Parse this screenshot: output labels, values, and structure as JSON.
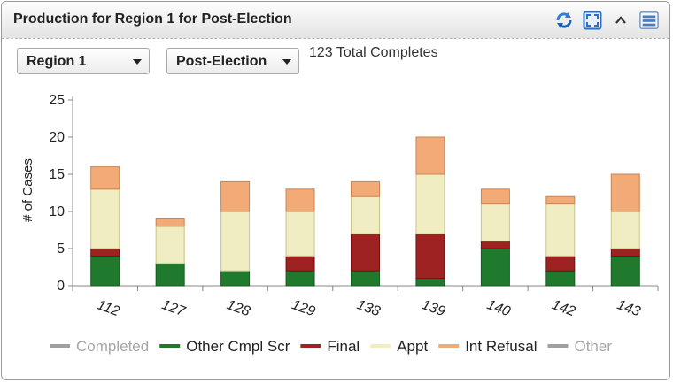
{
  "panel": {
    "title": "Production for Region 1 for Post-Election",
    "icons": [
      "refresh-icon",
      "maximize-icon",
      "collapse-icon",
      "menu-icon"
    ]
  },
  "filters": {
    "region": "Region 1",
    "phase": "Post-Election"
  },
  "total_completes": "123 Total Completes",
  "chart_data": {
    "type": "bar",
    "stacked": true,
    "ylabel": "# of Cases",
    "ylim": [
      0,
      25
    ],
    "yticks": [
      0,
      5,
      10,
      15,
      20,
      25
    ],
    "grid": false,
    "legend_position": "bottom",
    "categories": [
      "112",
      "127",
      "128",
      "129",
      "138",
      "139",
      "140",
      "142",
      "143"
    ],
    "series": [
      {
        "name": "Completed",
        "color": "#a0a0a0",
        "values": [
          0,
          0,
          0,
          0,
          0,
          0,
          0,
          0,
          0
        ],
        "legend_muted": true
      },
      {
        "name": "Other Cmpl Scr",
        "color": "#1f7a2e",
        "values": [
          4,
          3,
          2,
          2,
          2,
          1,
          5,
          2,
          4
        ]
      },
      {
        "name": "Final",
        "color": "#9e2222",
        "values": [
          1,
          0,
          0,
          2,
          5,
          6,
          1,
          2,
          1
        ]
      },
      {
        "name": "Appt",
        "color": "#f0edc2",
        "values": [
          8,
          5,
          8,
          6,
          5,
          8,
          5,
          7,
          5
        ]
      },
      {
        "name": "Int Refusal",
        "color": "#f2aa76",
        "values": [
          3,
          1,
          4,
          3,
          2,
          5,
          2,
          1,
          5
        ]
      },
      {
        "name": "Other",
        "color": "#a0a0a0",
        "values": [
          0,
          0,
          0,
          0,
          0,
          0,
          0,
          0,
          0
        ],
        "legend_muted": true
      }
    ]
  }
}
